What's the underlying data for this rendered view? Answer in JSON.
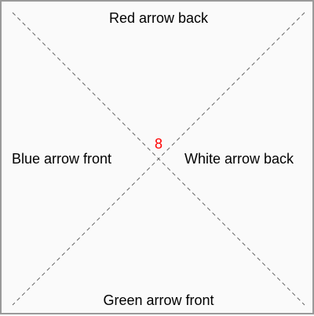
{
  "labels": {
    "top": "Red arrow back",
    "bottom": "Green arrow front",
    "left": "Blue arrow front",
    "right": "White arrow back"
  },
  "center_number": "8",
  "colors": {
    "background": "#fafafa",
    "border": "#9a9a9a",
    "diagonal_lines": "#666666",
    "label_text": "#000000",
    "center_number": "#ff0000"
  }
}
